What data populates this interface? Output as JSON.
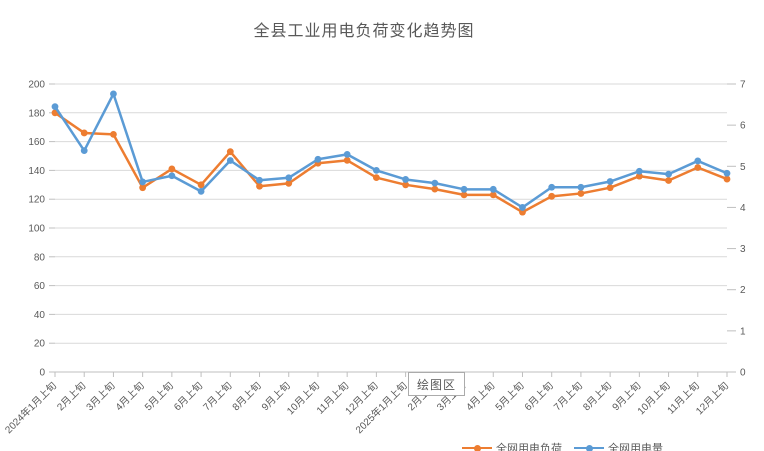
{
  "chart": {
    "title": "全县工业用电负荷变化趋势图"
  },
  "plot_area_tooltip": "绘图区",
  "legend": {
    "items": [
      {
        "label": "全网用电负荷",
        "color": "#ED7D31"
      },
      {
        "label": "全网用电量",
        "color": "#5B9BD5"
      }
    ]
  },
  "colors": {
    "series_load": "#ED7D31",
    "series_energy": "#5B9BD5",
    "gridline": "#D9D9D9",
    "axis": "#BFBFBF",
    "tick_label": "#595959",
    "title": "#595959"
  },
  "chart_data": {
    "type": "line",
    "title": "全县工业用电负荷变化趋势图",
    "categories": [
      "2024年1月上旬",
      "2月上旬",
      "3月上旬",
      "4月上旬",
      "5月上旬",
      "6月上旬",
      "7月上旬",
      "8月上旬",
      "9月上旬",
      "10月上旬",
      "11月上旬",
      "12月上旬",
      "2025年1月上旬",
      "2月上旬",
      "3月上旬",
      "4月上旬",
      "5月上旬",
      "6月上旬",
      "7月上旬",
      "8月上旬",
      "9月上旬",
      "10月上旬",
      "11月上旬",
      "12月上旬"
    ],
    "series": [
      {
        "name": "全网用电负荷",
        "color": "#ED7D31",
        "axis": "left",
        "values": [
          180,
          166,
          165,
          128,
          141,
          130,
          153,
          129,
          131,
          145,
          147,
          135,
          130,
          127,
          123,
          123,
          111,
          122,
          124,
          128,
          136,
          133,
          142,
          134
        ]
      },
      {
        "name": "全网用电量",
        "color": "#5B9BD5",
        "axis": "right",
        "values": [
          6.45,
          5.38,
          6.76,
          4.62,
          4.77,
          4.39,
          5.14,
          4.66,
          4.72,
          5.17,
          5.29,
          4.9,
          4.68,
          4.59,
          4.44,
          4.44,
          4.0,
          4.49,
          4.49,
          4.63,
          4.88,
          4.81,
          5.13,
          4.83
        ]
      }
    ],
    "left_axis": {
      "min": 0,
      "max": 200,
      "step": 20,
      "ticks": [
        0,
        20,
        40,
        60,
        80,
        100,
        120,
        140,
        160,
        180,
        200
      ]
    },
    "right_axis": {
      "min": 0,
      "max": 7,
      "step": 1,
      "ticks": [
        0,
        1,
        2,
        3,
        4,
        5,
        6,
        7
      ]
    },
    "grid": true,
    "legend_position": "bottom",
    "x_label_rotation": -45
  }
}
